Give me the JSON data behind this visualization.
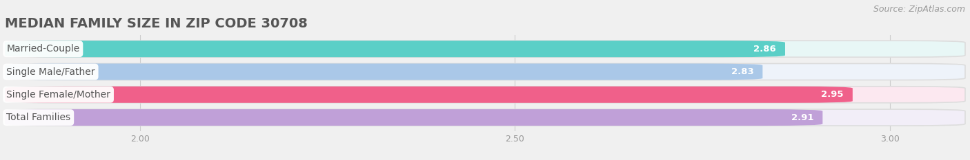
{
  "title": "MEDIAN FAMILY SIZE IN ZIP CODE 30708",
  "source": "Source: ZipAtlas.com",
  "categories": [
    "Married-Couple",
    "Single Male/Father",
    "Single Female/Mother",
    "Total Families"
  ],
  "values": [
    2.86,
    2.83,
    2.95,
    2.91
  ],
  "bar_colors": [
    "#5bcfc7",
    "#aac8e8",
    "#f0608a",
    "#c0a0d8"
  ],
  "bar_bg_colors": [
    "#e8f7f6",
    "#eef3fa",
    "#fce8f0",
    "#f2eef8"
  ],
  "xlim_left": 1.82,
  "xlim_right": 3.1,
  "xticks": [
    2.0,
    2.5,
    3.0
  ],
  "xticklabels": [
    "2.00",
    "2.50",
    "3.00"
  ],
  "background_color": "#f0f0f0",
  "title_fontsize": 14,
  "source_fontsize": 9,
  "label_fontsize": 10,
  "value_fontsize": 9.5
}
